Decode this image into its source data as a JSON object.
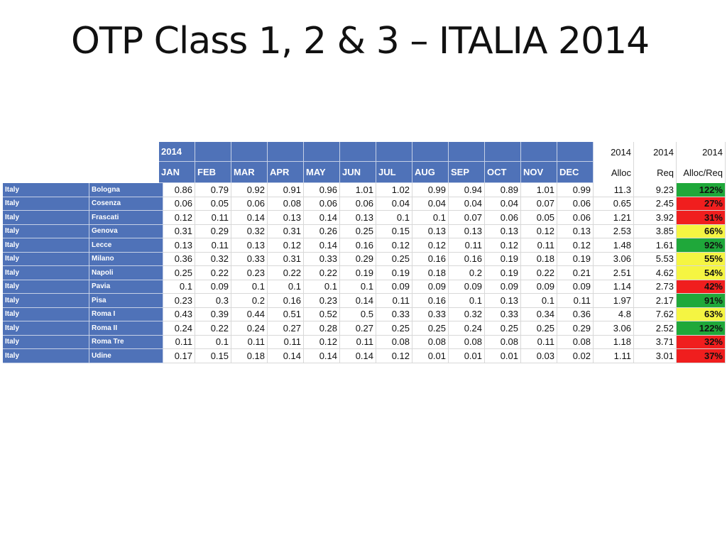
{
  "title": "OTP  Class 1, 2 & 3 – ITALIA 2014",
  "table": {
    "header": {
      "year": "2014",
      "months": [
        "JAN",
        "FEB",
        "MAR",
        "APR",
        "MAY",
        "JUN",
        "JUL",
        "AUG",
        "SEP",
        "OCT",
        "NOV",
        "DEC"
      ],
      "totals": [
        {
          "year": "2014",
          "label": "Alloc"
        },
        {
          "year": "2014",
          "label": "Req"
        },
        {
          "year": "2014",
          "label": "Alloc/Req"
        }
      ]
    },
    "rows": [
      {
        "country": "Italy",
        "city": "Bologna",
        "months": [
          "0.86",
          "0.79",
          "0.92",
          "0.91",
          "0.96",
          "1.01",
          "1.02",
          "0.99",
          "0.94",
          "0.89",
          "1.01",
          "0.99"
        ],
        "alloc": "11.3",
        "req": "9.23",
        "ratio": "122%",
        "ratio_color": "#1fa83a"
      },
      {
        "country": "Italy",
        "city": "Cosenza",
        "months": [
          "0.06",
          "0.05",
          "0.06",
          "0.08",
          "0.06",
          "0.06",
          "0.04",
          "0.04",
          "0.04",
          "0.04",
          "0.07",
          "0.06"
        ],
        "alloc": "0.65",
        "req": "2.45",
        "ratio": "27%",
        "ratio_color": "#f01e1e"
      },
      {
        "country": "Italy",
        "city": "Frascati",
        "months": [
          "0.12",
          "0.11",
          "0.14",
          "0.13",
          "0.14",
          "0.13",
          "0.1",
          "0.1",
          "0.07",
          "0.06",
          "0.05",
          "0.06"
        ],
        "alloc": "1.21",
        "req": "3.92",
        "ratio": "31%",
        "ratio_color": "#f01e1e"
      },
      {
        "country": "Italy",
        "city": "Genova",
        "months": [
          "0.31",
          "0.29",
          "0.32",
          "0.31",
          "0.26",
          "0.25",
          "0.15",
          "0.13",
          "0.13",
          "0.13",
          "0.12",
          "0.13"
        ],
        "alloc": "2.53",
        "req": "3.85",
        "ratio": "66%",
        "ratio_color": "#f5f542"
      },
      {
        "country": "Italy",
        "city": "Lecce",
        "months": [
          "0.13",
          "0.11",
          "0.13",
          "0.12",
          "0.14",
          "0.16",
          "0.12",
          "0.12",
          "0.11",
          "0.12",
          "0.11",
          "0.12"
        ],
        "alloc": "1.48",
        "req": "1.61",
        "ratio": "92%",
        "ratio_color": "#1fa83a"
      },
      {
        "country": "Italy",
        "city": "Milano",
        "months": [
          "0.36",
          "0.32",
          "0.33",
          "0.31",
          "0.33",
          "0.29",
          "0.25",
          "0.16",
          "0.16",
          "0.19",
          "0.18",
          "0.19"
        ],
        "alloc": "3.06",
        "req": "5.53",
        "ratio": "55%",
        "ratio_color": "#f5f542"
      },
      {
        "country": "Italy",
        "city": "Napoli",
        "months": [
          "0.25",
          "0.22",
          "0.23",
          "0.22",
          "0.22",
          "0.19",
          "0.19",
          "0.18",
          "0.2",
          "0.19",
          "0.22",
          "0.21"
        ],
        "alloc": "2.51",
        "req": "4.62",
        "ratio": "54%",
        "ratio_color": "#f5f542"
      },
      {
        "country": "Italy",
        "city": "Pavia",
        "months": [
          "0.1",
          "0.09",
          "0.1",
          "0.1",
          "0.1",
          "0.1",
          "0.09",
          "0.09",
          "0.09",
          "0.09",
          "0.09",
          "0.09"
        ],
        "alloc": "1.14",
        "req": "2.73",
        "ratio": "42%",
        "ratio_color": "#f01e1e"
      },
      {
        "country": "Italy",
        "city": "Pisa",
        "months": [
          "0.23",
          "0.3",
          "0.2",
          "0.16",
          "0.23",
          "0.14",
          "0.11",
          "0.16",
          "0.1",
          "0.13",
          "0.1",
          "0.11"
        ],
        "alloc": "1.97",
        "req": "2.17",
        "ratio": "91%",
        "ratio_color": "#1fa83a"
      },
      {
        "country": "Italy",
        "city": "Roma I",
        "months": [
          "0.43",
          "0.39",
          "0.44",
          "0.51",
          "0.52",
          "0.5",
          "0.33",
          "0.33",
          "0.32",
          "0.33",
          "0.34",
          "0.36"
        ],
        "alloc": "4.8",
        "req": "7.62",
        "ratio": "63%",
        "ratio_color": "#f5f542"
      },
      {
        "country": "Italy",
        "city": "Roma II",
        "months": [
          "0.24",
          "0.22",
          "0.24",
          "0.27",
          "0.28",
          "0.27",
          "0.25",
          "0.25",
          "0.24",
          "0.25",
          "0.25",
          "0.29"
        ],
        "alloc": "3.06",
        "req": "2.52",
        "ratio": "122%",
        "ratio_color": "#1fa83a"
      },
      {
        "country": "Italy",
        "city": "Roma Tre",
        "months": [
          "0.11",
          "0.1",
          "0.11",
          "0.11",
          "0.12",
          "0.11",
          "0.08",
          "0.08",
          "0.08",
          "0.08",
          "0.11",
          "0.08"
        ],
        "alloc": "1.18",
        "req": "3.71",
        "ratio": "32%",
        "ratio_color": "#f01e1e"
      },
      {
        "country": "Italy",
        "city": "Udine",
        "months": [
          "0.17",
          "0.15",
          "0.18",
          "0.14",
          "0.14",
          "0.14",
          "0.12",
          "0.01",
          "0.01",
          "0.01",
          "0.03",
          "0.02"
        ],
        "alloc": "1.11",
        "req": "3.01",
        "ratio": "37%",
        "ratio_color": "#f01e1e"
      }
    ]
  }
}
